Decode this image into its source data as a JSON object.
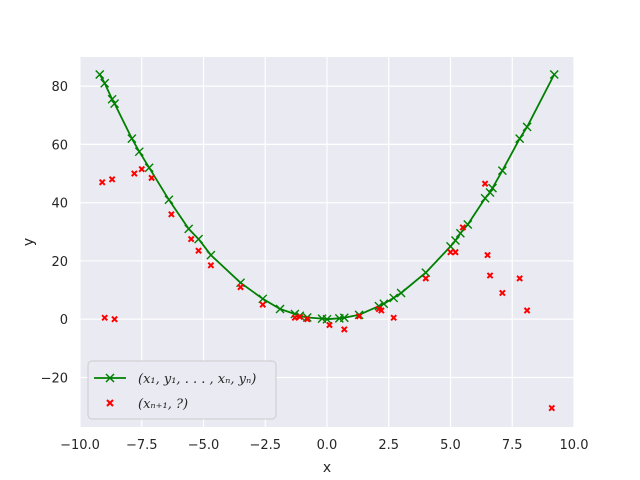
{
  "chart_data": {
    "type": "scatter",
    "title": "",
    "xlabel": "x",
    "ylabel": "y",
    "xlim": [
      -10.0,
      10.0
    ],
    "ylim": [
      -37,
      90
    ],
    "xticks": [
      -10.0,
      -7.5,
      -5.0,
      -2.5,
      0.0,
      2.5,
      5.0,
      7.5,
      10.0
    ],
    "xtick_labels": [
      "−10.0",
      "−7.5",
      "−5.0",
      "−2.5",
      "0.0",
      "2.5",
      "5.0",
      "7.5",
      "10.0"
    ],
    "yticks": [
      -20,
      0,
      20,
      40,
      60,
      80
    ],
    "ytick_labels": [
      "−20",
      "0",
      "20",
      "40",
      "60",
      "80"
    ],
    "grid": true,
    "legend_position": "lower-left",
    "colors": {
      "background": "#eaeaf2",
      "grid": "#ffffff",
      "series_line": "#008000",
      "series_points": "#ff0000"
    },
    "series": [
      {
        "name": "(x₁, y₁, . . . , xₙ, yₙ)",
        "mode": "line+x-markers",
        "color": "#008000",
        "x": [
          -9.2,
          -9.0,
          -8.7,
          -8.6,
          -7.9,
          -7.6,
          -7.2,
          -6.4,
          -5.6,
          -5.2,
          -4.7,
          -3.5,
          -2.6,
          -1.9,
          -1.3,
          -1.1,
          -0.8,
          -0.2,
          0.0,
          0.5,
          0.7,
          1.3,
          2.1,
          2.3,
          2.7,
          3.0,
          4.0,
          5.0,
          5.2,
          5.4,
          5.7,
          6.4,
          6.6,
          6.7,
          7.1,
          7.8,
          8.1,
          9.2
        ],
        "y": [
          84.0,
          81.0,
          75.5,
          74.0,
          62.0,
          57.5,
          52.0,
          41.0,
          31.0,
          27.5,
          22.0,
          12.5,
          7.0,
          3.5,
          1.8,
          1.2,
          0.6,
          0.2,
          0.0,
          0.3,
          0.5,
          1.5,
          4.5,
          5.3,
          7.3,
          9.0,
          16.0,
          25.0,
          27.0,
          29.5,
          32.5,
          41.5,
          43.5,
          45.0,
          51.0,
          62.0,
          66.0,
          84.0
        ]
      },
      {
        "name": "(xₙ₊₁, ?)",
        "mode": "x-markers",
        "color": "#ff0000",
        "x": [
          -9.1,
          -9.0,
          -8.7,
          -8.6,
          -7.8,
          -7.5,
          -7.1,
          -6.3,
          -5.5,
          -5.2,
          -4.7,
          -3.5,
          -2.6,
          -1.3,
          -1.1,
          -0.8,
          0.1,
          0.7,
          1.3,
          2.1,
          2.2,
          2.7,
          4.0,
          5.0,
          5.2,
          5.5,
          6.4,
          6.5,
          6.6,
          7.1,
          7.8,
          8.1,
          9.1
        ],
        "y": [
          47.0,
          0.5,
          48.0,
          0.0,
          50.0,
          51.5,
          48.5,
          36.0,
          27.5,
          23.5,
          18.5,
          11.0,
          5.0,
          0.5,
          0.8,
          0.0,
          -2.0,
          -3.5,
          1.0,
          3.5,
          3.0,
          0.5,
          14.0,
          23.0,
          23.0,
          31.5,
          46.5,
          22.0,
          15.0,
          9.0,
          14.0,
          3.0,
          -30.5
        ]
      }
    ]
  }
}
